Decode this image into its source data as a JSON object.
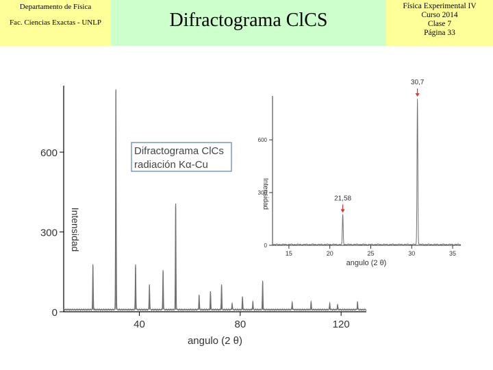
{
  "header": {
    "left_line1": "Departamento de Física",
    "left_line2": "Fac. Ciencias Exactas - UNLP",
    "title": "Difractograma ClCS",
    "right_lines": [
      "Física Experimental IV",
      "Curso 2014",
      "Clase 7",
      "Página 33"
    ]
  },
  "colors": {
    "header_yellow": "#ffff99",
    "header_green": "#ccffcc",
    "trace": "#707070",
    "legend_border": "#5b7fc0",
    "arrow": "#e03030"
  },
  "chart_data": [
    {
      "type": "line",
      "title": "",
      "legend_lines": [
        "Difractograma ClCs",
        "radiación Kα-Cu"
      ],
      "xlabel": "angulo (2 θ)",
      "ylabel": "Intensidad",
      "xlim": [
        10,
        130
      ],
      "ylim": [
        0,
        850
      ],
      "xticks": [
        40,
        80,
        120
      ],
      "yticks": [
        0,
        300,
        600
      ],
      "baseline": 8,
      "peaks": [
        {
          "x": 21.6,
          "y": 170
        },
        {
          "x": 30.7,
          "y": 830
        },
        {
          "x": 38.5,
          "y": 170
        },
        {
          "x": 44.0,
          "y": 95
        },
        {
          "x": 49.4,
          "y": 150
        },
        {
          "x": 54.4,
          "y": 400
        },
        {
          "x": 63.7,
          "y": 55
        },
        {
          "x": 68.2,
          "y": 70
        },
        {
          "x": 72.6,
          "y": 95
        },
        {
          "x": 76.8,
          "y": 25
        },
        {
          "x": 80.9,
          "y": 50
        },
        {
          "x": 85.0,
          "y": 30
        },
        {
          "x": 88.9,
          "y": 110
        },
        {
          "x": 100.6,
          "y": 30
        },
        {
          "x": 108.1,
          "y": 30
        },
        {
          "x": 115.5,
          "y": 25
        },
        {
          "x": 118.6,
          "y": 20
        },
        {
          "x": 126.5,
          "y": 30
        }
      ]
    },
    {
      "type": "line",
      "title": "",
      "xlabel": "angulo (2 θ)",
      "ylabel": "Intensidad",
      "xlim": [
        13,
        36
      ],
      "ylim": [
        0,
        850
      ],
      "xticks": [
        15,
        20,
        25,
        30,
        35
      ],
      "yticks": [
        0,
        300,
        600
      ],
      "baseline": 5,
      "peaks": [
        {
          "x": 21.58,
          "y": 170
        },
        {
          "x": 30.7,
          "y": 830
        }
      ],
      "annotations": [
        {
          "label": "21,58",
          "x": 21.58
        },
        {
          "label": "30,7",
          "x": 30.7
        }
      ]
    }
  ]
}
